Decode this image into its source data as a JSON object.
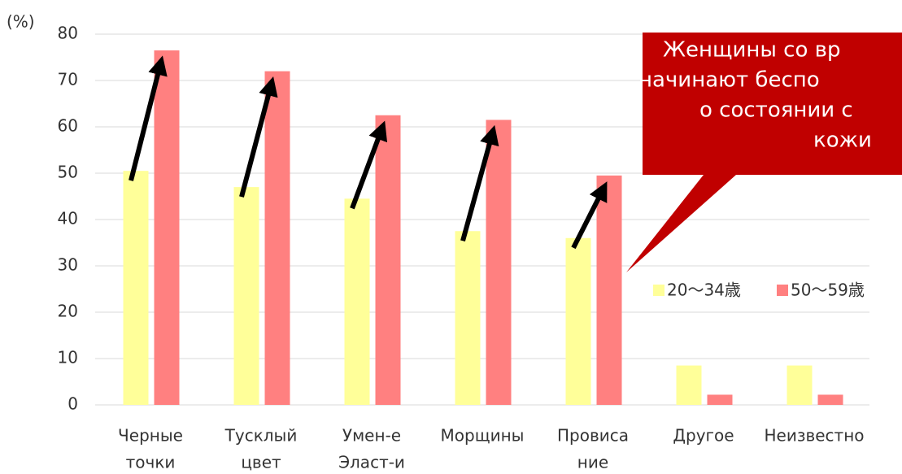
{
  "chart_data": {
    "type": "bar",
    "y_unit": "(%)",
    "categories": [
      [
        "Черные",
        "точки"
      ],
      [
        "Тусклый",
        "цвет"
      ],
      [
        "Умен-е",
        "Эласт-и"
      ],
      [
        "Морщины"
      ],
      [
        "Провиса",
        "ние"
      ],
      [
        "Другое"
      ],
      [
        "Неизвестно"
      ]
    ],
    "series": [
      {
        "name": "20～34歳",
        "color": "#ffff99",
        "values": [
          50.5,
          47,
          44.5,
          37.5,
          36,
          8.5,
          8.5
        ]
      },
      {
        "name": "50～59歳",
        "color": "#ff8080",
        "values": [
          76.5,
          72,
          62.5,
          61.5,
          49.5,
          2.2,
          2.2
        ]
      }
    ],
    "ylim": [
      0,
      80
    ],
    "yticks": [
      0,
      10,
      20,
      30,
      40,
      50,
      60,
      70,
      80
    ],
    "grid": true,
    "annotation": {
      "lines": [
        "Женщины со вр",
        "начинают беспо",
        "о состоянии с",
        "кожи"
      ],
      "color": "#c00000"
    }
  }
}
